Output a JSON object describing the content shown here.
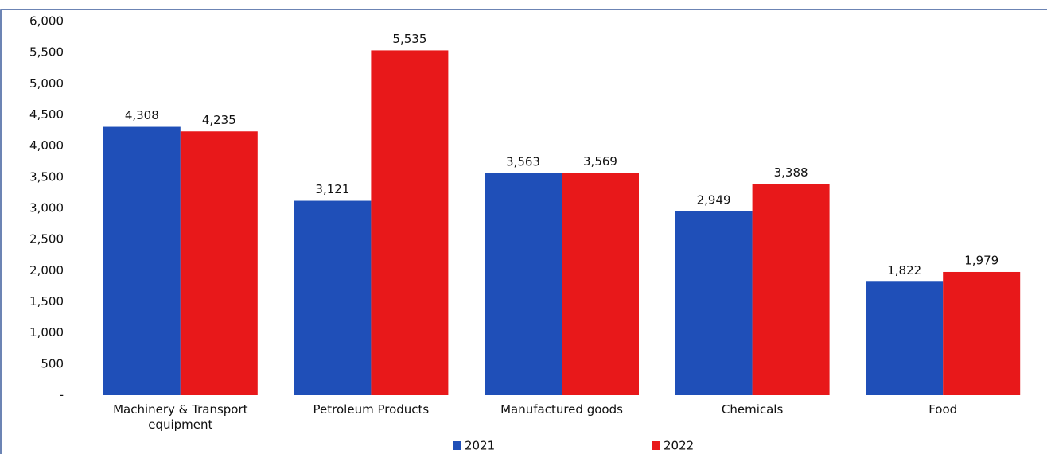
{
  "chart_data": {
    "type": "bar",
    "categories": [
      "Machinery & Transport equipment",
      "Petroleum Products",
      "Manufactured goods",
      "Chemicals",
      "Food"
    ],
    "series": [
      {
        "name": "2021",
        "color": "#1f4fb8",
        "values": [
          4308,
          3121,
          3563,
          2949,
          1822
        ],
        "value_labels": [
          "4,308",
          "3,121",
          "3,563",
          "2,949",
          "1,822"
        ]
      },
      {
        "name": "2022",
        "color": "#e8181a",
        "values": [
          4235,
          5535,
          3569,
          3388,
          1979
        ],
        "value_labels": [
          "4,235",
          "5,535",
          "3,569",
          "3,388",
          "1,979"
        ]
      }
    ],
    "ylim": [
      0,
      6000
    ],
    "yticks": [
      {
        "value": 0,
        "label": "-"
      },
      500,
      {
        "value": 1000,
        "label": "1,000"
      },
      {
        "value": 1500,
        "label": "1,500"
      },
      {
        "value": 2000,
        "label": "2,000"
      },
      {
        "value": 2500,
        "label": "2,500"
      },
      {
        "value": 3000,
        "label": "3,000"
      },
      {
        "value": 3500,
        "label": "3,500"
      },
      {
        "value": 4000,
        "label": "4,000"
      },
      {
        "value": 4500,
        "label": "4,500"
      },
      {
        "value": 5000,
        "label": "5,000"
      },
      {
        "value": 5500,
        "label": "5,500"
      },
      {
        "value": 6000,
        "label": "6,000"
      }
    ],
    "grid": false,
    "legend": "bottom"
  }
}
